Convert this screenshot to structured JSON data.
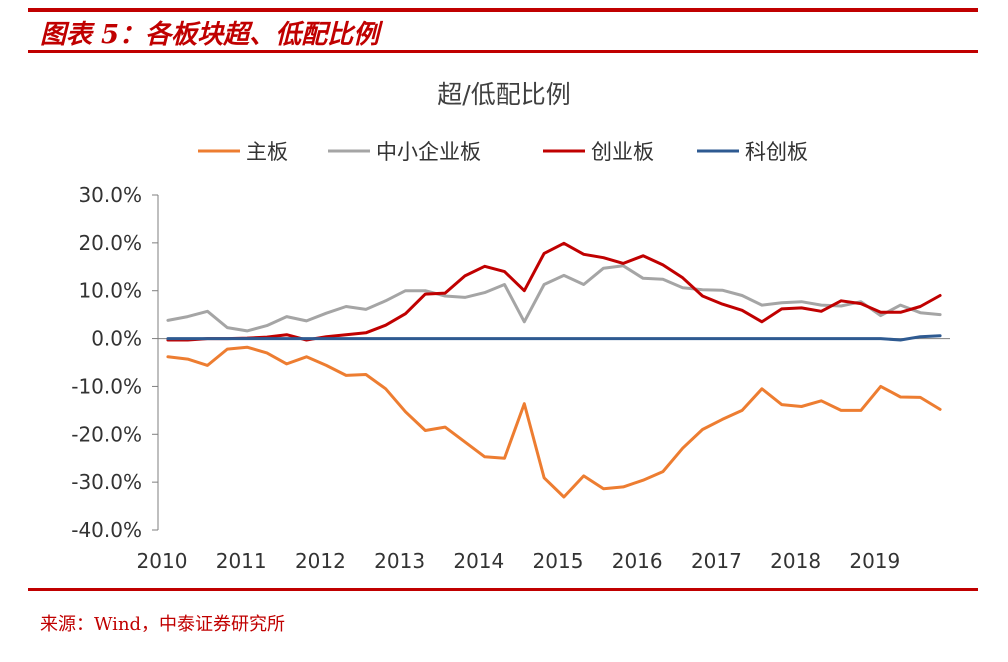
{
  "figure": {
    "title": "图表 5：各板块超、低配比例",
    "source": "来源：Wind，中泰证券研究所"
  },
  "colors": {
    "rule": "#c00000",
    "series": [
      "#ED7D31",
      "#A5A5A5",
      "#C00000",
      "#2E5A91"
    ]
  },
  "chart_data": {
    "type": "line",
    "title": "超/低配比例",
    "legend_position": "top",
    "grid": false,
    "ylim": [
      -40,
      30
    ],
    "y_ticks": [
      30,
      20,
      10,
      0,
      -10,
      -20,
      -30,
      -40
    ],
    "y_tick_labels": [
      "30.0%",
      "20.0%",
      "10.0%",
      "0.0%",
      "-10.0%",
      "-20.0%",
      "-30.0%",
      "-40.0%"
    ],
    "x_tick_labels": [
      "2010",
      "2011",
      "2012",
      "2013",
      "2014",
      "2015",
      "2016",
      "2017",
      "2018",
      "2019"
    ],
    "x": [
      "2010Q1",
      "2010Q2",
      "2010Q3",
      "2010Q4",
      "2011Q1",
      "2011Q2",
      "2011Q3",
      "2011Q4",
      "2012Q1",
      "2012Q2",
      "2012Q3",
      "2012Q4",
      "2013Q1",
      "2013Q2",
      "2013Q3",
      "2013Q4",
      "2014Q1",
      "2014Q2",
      "2014Q3",
      "2014Q4",
      "2015Q1",
      "2015Q2",
      "2015Q3",
      "2015Q4",
      "2016Q1",
      "2016Q2",
      "2016Q3",
      "2016Q4",
      "2017Q1",
      "2017Q2",
      "2017Q3",
      "2017Q4",
      "2018Q1",
      "2018Q2",
      "2018Q3",
      "2018Q4",
      "2019Q1",
      "2019Q2",
      "2019Q3",
      "2019Q4"
    ],
    "series": [
      {
        "name": "主板",
        "values": [
          -3.8,
          -4.3,
          -5.6,
          -2.2,
          -1.8,
          -3.0,
          -5.3,
          -3.8,
          -5.6,
          -7.7,
          -7.5,
          -10.5,
          -15.3,
          -19.2,
          -18.5,
          -21.6,
          -24.7,
          -25.0,
          -13.6,
          -29.1,
          -33.1,
          -28.7,
          -31.4,
          -31.0,
          -29.6,
          -27.8,
          -22.9,
          -19.0,
          -16.9,
          -15.0,
          -10.5,
          -13.8,
          -14.2,
          -13.0,
          -15.0,
          -15.0,
          -10.0,
          -12.2,
          -12.3,
          -14.8
        ]
      },
      {
        "name": "中小企业板",
        "values": [
          3.8,
          4.6,
          5.7,
          2.3,
          1.6,
          2.7,
          4.6,
          3.7,
          5.3,
          6.7,
          6.1,
          7.9,
          10.0,
          10.0,
          8.9,
          8.6,
          9.6,
          11.3,
          3.5,
          11.3,
          13.2,
          11.3,
          14.7,
          15.2,
          12.6,
          12.4,
          10.6,
          10.2,
          10.1,
          9.0,
          7.0,
          7.5,
          7.7,
          7.0,
          6.8,
          7.7,
          4.8,
          7.0,
          5.4,
          5.0
        ]
      },
      {
        "name": "创业板",
        "values": [
          -0.3,
          -0.3,
          0,
          0,
          0.1,
          0.3,
          0.8,
          -0.3,
          0.4,
          0.8,
          1.2,
          2.8,
          5.2,
          9.3,
          9.5,
          13.1,
          15.1,
          14.0,
          10.0,
          17.8,
          19.9,
          17.6,
          16.9,
          15.7,
          17.3,
          15.4,
          12.7,
          8.9,
          7.2,
          5.9,
          3.5,
          6.2,
          6.4,
          5.7,
          7.9,
          7.3,
          5.5,
          5.5,
          6.7,
          9.0
        ]
      },
      {
        "name": "科创板",
        "values": [
          0,
          0,
          0,
          0,
          0,
          0,
          0,
          0,
          0,
          0,
          0,
          0,
          0,
          0,
          0,
          0,
          0,
          0,
          0,
          0,
          0,
          0,
          0,
          0,
          0,
          0,
          0,
          0,
          0,
          0,
          0,
          0,
          0,
          0,
          0,
          0,
          0,
          -0.3,
          0.4,
          0.6
        ]
      }
    ]
  }
}
